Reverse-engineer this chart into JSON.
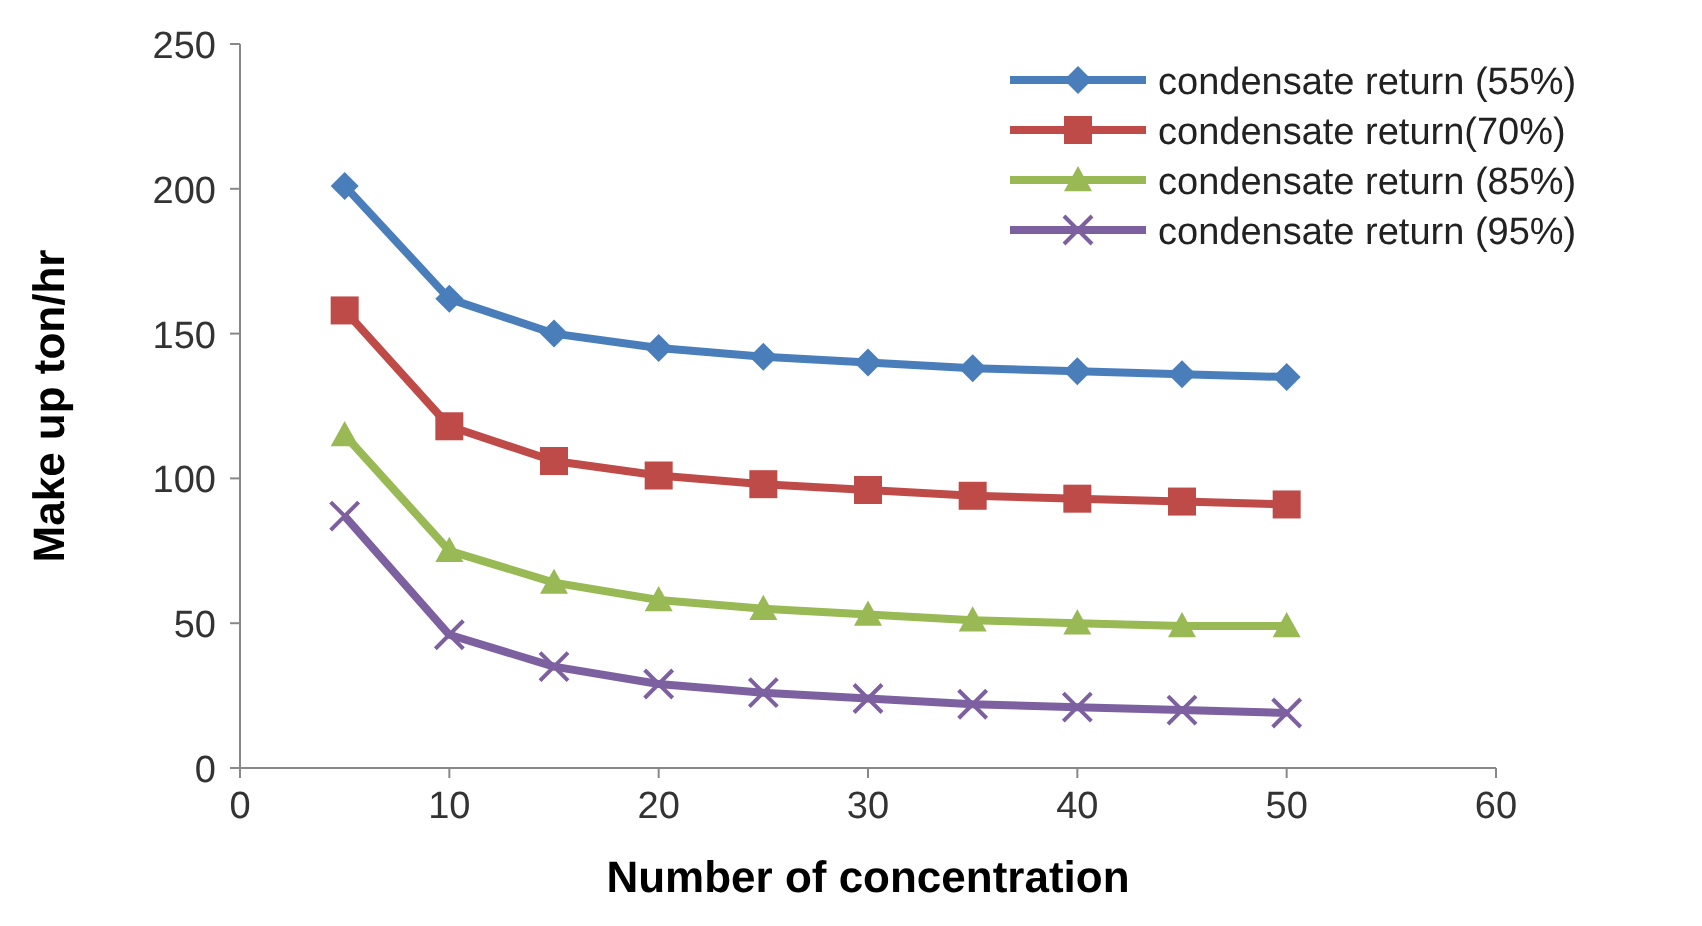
{
  "chart_data": {
    "type": "line",
    "xlabel": "Number of concentration",
    "ylabel": "Make up ton/hr",
    "x": [
      5,
      10,
      15,
      20,
      25,
      30,
      35,
      40,
      45,
      50
    ],
    "xlim": [
      0,
      60
    ],
    "xticks": [
      0,
      10,
      20,
      30,
      40,
      50,
      60
    ],
    "ylim": [
      0,
      250
    ],
    "yticks": [
      0,
      50,
      100,
      150,
      200,
      250
    ],
    "grid": false,
    "legend": "top right",
    "line_style": "solid",
    "series": [
      {
        "name": "condensate return (55%)",
        "color": "#4a7ebb",
        "marker": "diamond",
        "values": [
          201,
          162,
          150,
          145,
          142,
          140,
          138,
          137,
          136,
          135
        ]
      },
      {
        "name": "condensate return(70%)",
        "color": "#be4b48",
        "marker": "square",
        "values": [
          158,
          118,
          106,
          101,
          98,
          96,
          94,
          93,
          92,
          91
        ]
      },
      {
        "name": "condensate return (85%)",
        "color": "#98b954",
        "marker": "triangle",
        "values": [
          115,
          75,
          64,
          58,
          55,
          53,
          51,
          50,
          49,
          49
        ]
      },
      {
        "name": "condensate return (95%)",
        "color": "#7d60a0",
        "marker": "cross",
        "values": [
          87,
          46,
          35,
          29,
          26,
          24,
          22,
          21,
          20,
          19
        ]
      }
    ]
  }
}
